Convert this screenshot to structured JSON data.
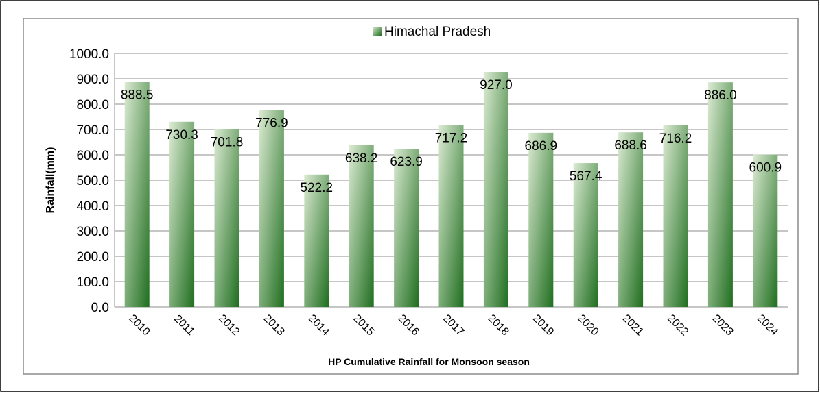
{
  "chart_data": {
    "type": "bar",
    "legend": "Himachal Pradesh",
    "xlabel": "HP Cumulative Rainfall for Monsoon season",
    "ylabel": "Rainfall(mm)",
    "categories": [
      "2010",
      "2011",
      "2012",
      "2013",
      "2014",
      "2015",
      "2016",
      "2017",
      "2018",
      "2019",
      "2020",
      "2021",
      "2022",
      "2023",
      "2024"
    ],
    "values": [
      888.5,
      730.3,
      701.8,
      776.9,
      522.2,
      638.2,
      623.9,
      717.2,
      927.0,
      686.9,
      567.4,
      688.6,
      716.2,
      886.0,
      600.9
    ],
    "value_labels": [
      "888.5",
      "730.3",
      "701.8",
      "776.9",
      "522.2",
      "638.2",
      "623.9",
      "717.2",
      "927.0",
      "686.9",
      "567.4",
      "688.6",
      "716.2",
      "886.0",
      "600.9"
    ],
    "colors": [
      "#dcebd3",
      "#1f6e1f"
    ],
    "ylim": [
      0,
      1000
    ],
    "yticks": [
      {
        "value": 0,
        "label": "0.0"
      },
      {
        "value": 100,
        "label": "100.0"
      },
      {
        "value": 200,
        "label": "200.0"
      },
      {
        "value": 300,
        "label": "300.0"
      },
      {
        "value": 400,
        "label": "400.0"
      },
      {
        "value": 500,
        "label": "500.0"
      },
      {
        "value": 600,
        "label": "600.0"
      },
      {
        "value": 700,
        "label": "700.0"
      },
      {
        "value": 800,
        "label": "800.0"
      },
      {
        "value": 900,
        "label": "900.0"
      },
      {
        "value": 1000,
        "label": "1000.0"
      }
    ],
    "grid": true
  }
}
